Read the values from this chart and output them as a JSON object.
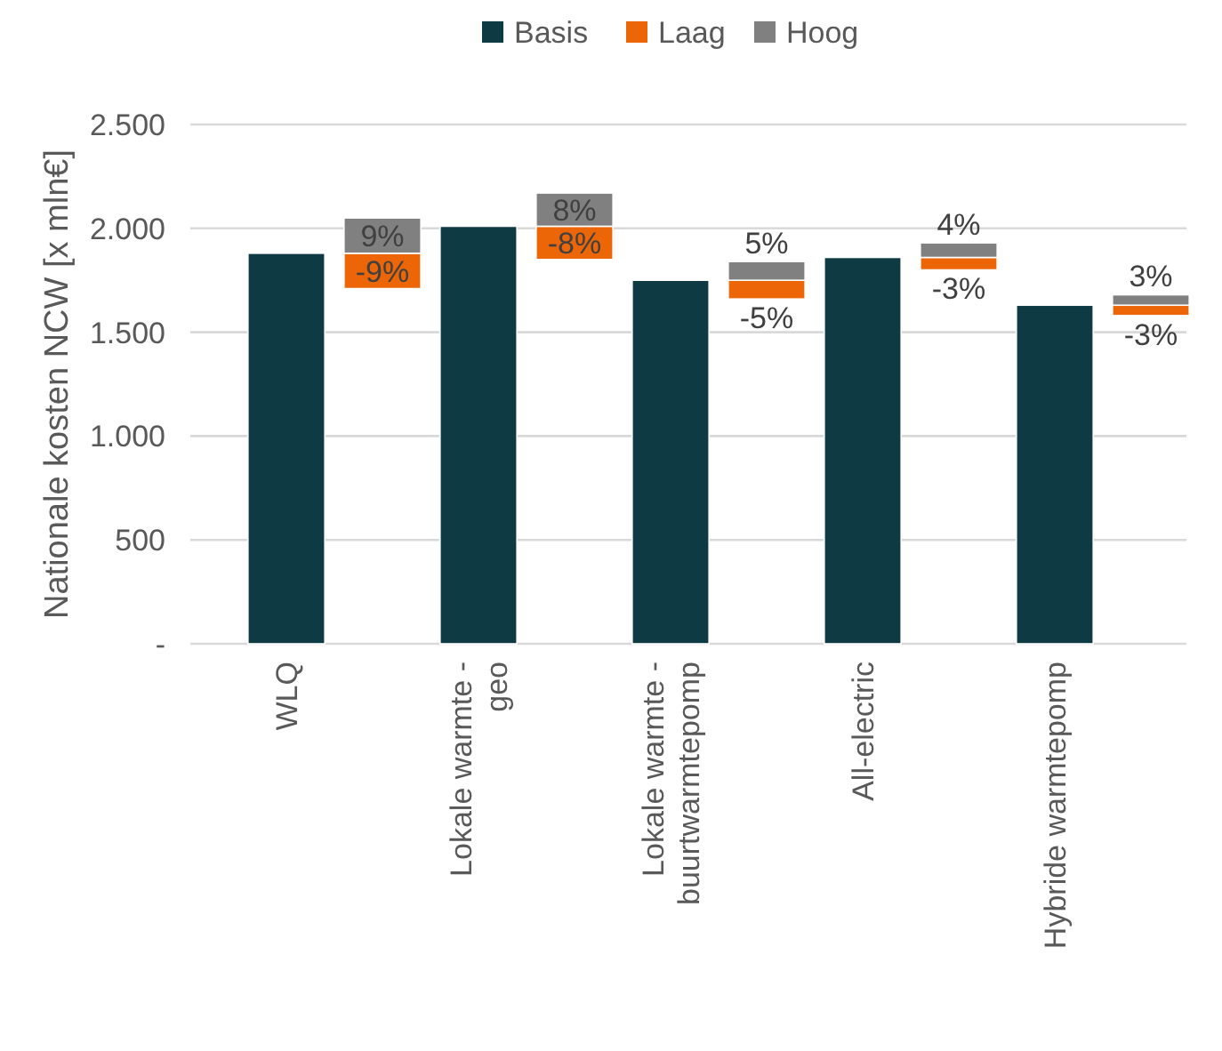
{
  "chart_data": {
    "type": "bar",
    "ylabel": "Nationale kosten NCW [x mln€]",
    "categories": [
      "WLQ",
      "Lokale warmte - geo",
      "Lokale warmte - buurtwarmtepomp",
      "All-electric",
      "Hybride warmtepomp"
    ],
    "series": [
      {
        "name": "Basis",
        "color": "#0e3b43",
        "values": [
          1880,
          2010,
          1750,
          1860,
          1630
        ]
      },
      {
        "name": "Laag",
        "color": "#ec6608",
        "values": [
          170,
          160,
          90,
          60,
          50
        ],
        "base": [
          1710,
          1850,
          1660,
          1800,
          1580
        ]
      },
      {
        "name": "Hoog",
        "color": "#808080",
        "values": [
          170,
          160,
          90,
          70,
          50
        ],
        "base": [
          1880,
          2010,
          1750,
          1860,
          1630
        ]
      }
    ],
    "annotations": [
      "-9%",
      "9%",
      "-8%",
      "8%",
      "-5%",
      "5%",
      "-3%",
      "4%",
      "-3%",
      "3%"
    ],
    "ylim": [
      0,
      2500
    ],
    "yticks": [
      {
        "value": 0,
        "label": "-"
      },
      {
        "value": 500,
        "label": "500"
      },
      {
        "value": 1000,
        "label": "1.000"
      },
      {
        "value": 1500,
        "label": "1.500"
      },
      {
        "value": 2000,
        "label": "2.000"
      },
      {
        "value": 2500,
        "label": "2.500"
      }
    ],
    "grid": "y",
    "legend": "top"
  }
}
